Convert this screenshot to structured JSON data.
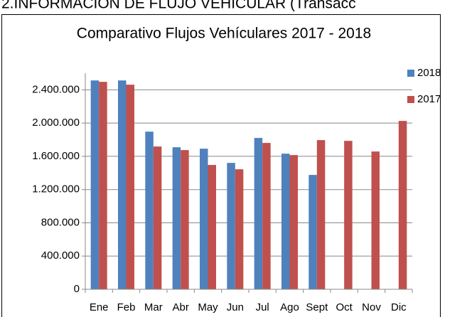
{
  "heading": "2.INFORMACIÓN DE FLUJO VEHICULAR (Transacc",
  "chart_data": {
    "type": "bar",
    "title": "Comparativo Flujos Vehículares 2017 - 2018",
    "categories": [
      "Ene",
      "Feb",
      "Mar",
      "Abr",
      "May",
      "Jun",
      "Jul",
      "Ago",
      "Sept",
      "Oct",
      "Nov",
      "Dic"
    ],
    "series": [
      {
        "name": "2018",
        "color": "#4f81bd",
        "values": [
          2513000,
          2513000,
          1897000,
          1709000,
          1692000,
          1521000,
          1821000,
          1632000,
          1376000,
          null,
          null,
          null
        ]
      },
      {
        "name": "2017",
        "color": "#c0504d",
        "values": [
          2496000,
          2462000,
          1718000,
          1675000,
          1496000,
          1444000,
          1761000,
          1615000,
          1795000,
          1786000,
          1658000,
          2026000
        ]
      }
    ],
    "ylim": [
      0,
      2600000
    ],
    "yticks": [
      0,
      {
        "value": 400000,
        "label": "400.000"
      },
      {
        "value": 800000,
        "label": "800.000"
      },
      {
        "value": 1200000,
        "label": "1.200.000"
      },
      {
        "value": 1600000,
        "label": "1.600.000"
      },
      {
        "value": 2000000,
        "label": "2.000.000"
      },
      {
        "value": 2400000,
        "label": "2.400.000"
      }
    ],
    "grid": true,
    "legend": "top-right"
  }
}
